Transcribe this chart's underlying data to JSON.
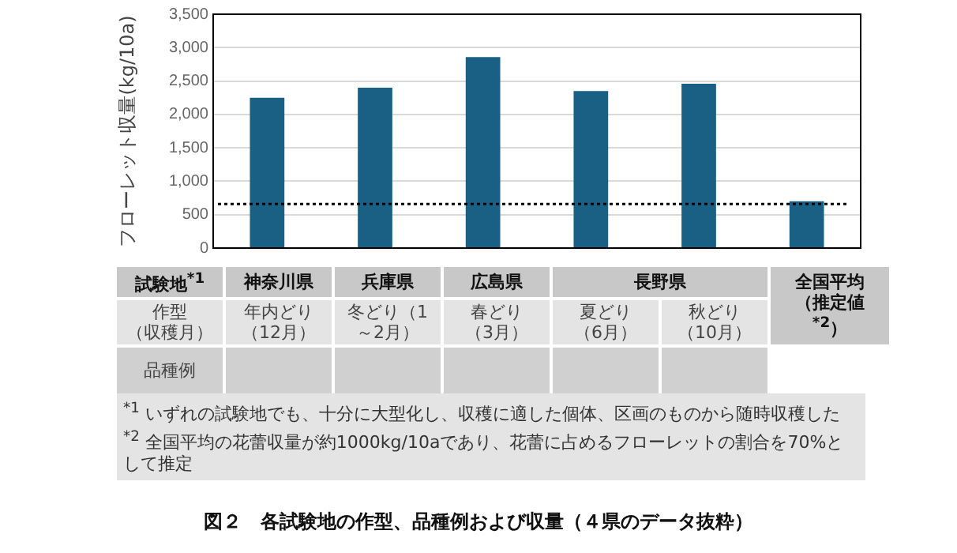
{
  "chart_data": {
    "type": "bar",
    "title": "図２　各試験地の作型、品種例および収量（４県のデータ抜粋）",
    "ylabel": "フローレット収量(kg/10a)",
    "categories": [
      "年内どり（12月）",
      "冬どり（1～2月）",
      "春どり（3月）",
      "夏どり（6月）",
      "秋どり（10月）",
      "全国平均（推定値$^{*2}$）"
    ],
    "values": [
      2250,
      2400,
      2860,
      2350,
      2460,
      700
    ],
    "color": "#1a6085",
    "ylim": [
      0,
      3500
    ],
    "yticks": [
      0,
      {
        "value": 500,
        "label": "500"
      },
      {
        "value": 1000,
        "label": "1,000"
      },
      {
        "value": 1500,
        "label": "1,500"
      },
      {
        "value": 2000,
        "label": "2,000"
      },
      {
        "value": 2500,
        "label": "2,500"
      },
      {
        "value": 3000,
        "label": "3,000"
      },
      {
        "value": 3500,
        "label": "3,500"
      }
    ],
    "grid": "y",
    "legend": false,
    "ref_lines": [
      {
        "axis": "y",
        "value": 660,
        "line_style": "dotted",
        "color": "#000000"
      }
    ],
    "annotations": [
      "試験地$^{*1}$",
      "作型（収穫月）",
      "品種例",
      "神奈川県",
      "兵庫県",
      "広島県",
      "長野県",
      "$^{*1}$ いずれの試験地でも、十分に大型化し、収穫に適した個体、区画のものから随時収穫した",
      "$^{*2}$ 全国平均の花蕾収量が約1000kg/10aであり、花蕾に占めるフローレットの割合を70%として推定"
    ]
  }
}
